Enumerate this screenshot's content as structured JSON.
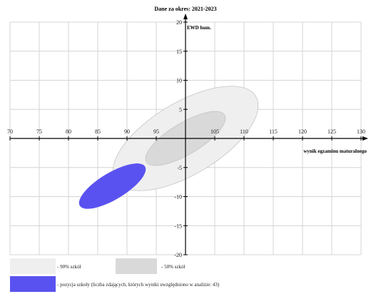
{
  "chart_data": {
    "type": "scatter",
    "title": "Dane za okres: 2021-2023",
    "xlabel": "wynik egzaminu maturalnego",
    "ylabel": "EWD hum.",
    "xlim": [
      70,
      130
    ],
    "ylim": [
      -20,
      20
    ],
    "x_ticks": [
      70,
      75,
      80,
      85,
      90,
      95,
      105,
      110,
      115,
      120,
      125,
      130
    ],
    "y_ticks": [
      20,
      15,
      10,
      5,
      -5,
      -10,
      -15,
      -20
    ],
    "grid": true,
    "series": [
      {
        "name": "- 90% szkół",
        "shape": "ellipse",
        "center": [
          100,
          0
        ],
        "semi_axis_x": 14,
        "semi_axis_y": 6.2,
        "color": "#efefef"
      },
      {
        "name": "- 50% szkół",
        "shape": "ellipse",
        "center": [
          100,
          0
        ],
        "semi_axis_x": 7.8,
        "semi_axis_y": 2.7,
        "color": "#d9d9d9"
      },
      {
        "name": "- pozycja szkoły (liczba zdających, których wyniki uwzględniono w analizie: 43)",
        "shape": "ellipse",
        "center": [
          87.5,
          -8.2
        ],
        "semi_axis_x": 6.5,
        "semi_axis_y": 2.3,
        "color": "#5a52f0"
      }
    ]
  }
}
